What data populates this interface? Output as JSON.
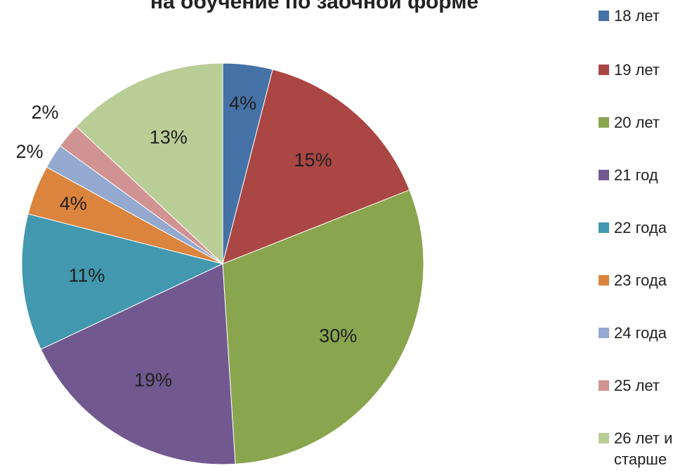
{
  "chart_data": {
    "type": "pie",
    "title": "на обучение по заочной форме",
    "legend_position": "right",
    "labels": [
      "18 лет",
      "19 лет",
      "20 лет",
      "21 год",
      "22 года",
      "23 года",
      "24 года",
      "25 лет",
      "26 лет и старше"
    ],
    "values": [
      4,
      15,
      30,
      19,
      11,
      4,
      2,
      2,
      13
    ],
    "data_labels": [
      "4%",
      "15%",
      "30%",
      "19%",
      "11%",
      "4%",
      "2%",
      "2%",
      "13%"
    ],
    "colors": [
      "#4572A7",
      "#AA4643",
      "#89A54E",
      "#71588F",
      "#4198AF",
      "#DB843D",
      "#93A9CF",
      "#D19392",
      "#B9CD96"
    ]
  }
}
